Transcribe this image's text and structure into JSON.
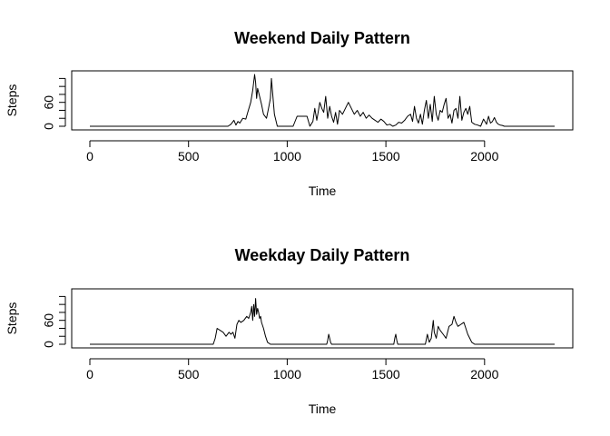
{
  "chart_data": [
    {
      "type": "line",
      "title": "Weekend Daily Pattern",
      "xlabel": "Time",
      "ylabel": "Steps",
      "xlim": [
        0,
        2355
      ],
      "ylim": [
        0,
        130
      ],
      "xticks": [
        0,
        500,
        1000,
        1500,
        2000
      ],
      "yticks": [
        0,
        60
      ],
      "series": [
        {
          "x": [
            0,
            700,
            715,
            730,
            740,
            750,
            760,
            775,
            790,
            800,
            815,
            825,
            835,
            840,
            845,
            850,
            860,
            870,
            880,
            895,
            905,
            915,
            920,
            935,
            950,
            1000,
            1030,
            1050,
            1100,
            1115,
            1130,
            1140,
            1150,
            1165,
            1175,
            1185,
            1195,
            1205,
            1215,
            1225,
            1235,
            1245,
            1255,
            1265,
            1280,
            1295,
            1310,
            1325,
            1340,
            1355,
            1370,
            1385,
            1400,
            1415,
            1430,
            1445,
            1460,
            1475,
            1490,
            1505,
            1520,
            1535,
            1550,
            1565,
            1580,
            1595,
            1610,
            1625,
            1635,
            1645,
            1655,
            1665,
            1675,
            1685,
            1695,
            1705,
            1715,
            1725,
            1735,
            1745,
            1755,
            1765,
            1775,
            1785,
            1795,
            1805,
            1815,
            1825,
            1835,
            1845,
            1855,
            1865,
            1875,
            1885,
            1895,
            1905,
            1915,
            1925,
            1935,
            1950,
            1965,
            1980,
            1995,
            2010,
            2020,
            2030,
            2040,
            2050,
            2060,
            2070,
            2080,
            2090,
            2100,
            2115,
            2130,
            2355
          ],
          "y": [
            0,
            0,
            5,
            15,
            3,
            12,
            8,
            20,
            18,
            35,
            60,
            90,
            130,
            110,
            70,
            95,
            75,
            55,
            30,
            20,
            45,
            70,
            120,
            30,
            0,
            0,
            0,
            25,
            25,
            0,
            12,
            45,
            15,
            60,
            45,
            35,
            75,
            20,
            50,
            25,
            10,
            35,
            5,
            40,
            30,
            45,
            60,
            45,
            30,
            40,
            25,
            35,
            20,
            28,
            20,
            15,
            10,
            18,
            12,
            3,
            5,
            0,
            3,
            10,
            8,
            15,
            25,
            30,
            12,
            50,
            20,
            8,
            30,
            5,
            40,
            65,
            20,
            55,
            12,
            75,
            30,
            15,
            40,
            35,
            55,
            70,
            20,
            30,
            8,
            40,
            45,
            20,
            75,
            15,
            35,
            45,
            30,
            50,
            10,
            5,
            3,
            0,
            18,
            5,
            25,
            8,
            12,
            22,
            10,
            5,
            3,
            2,
            0,
            0,
            0,
            0
          ]
        }
      ]
    },
    {
      "type": "line",
      "title": "Weekday Daily Pattern",
      "xlabel": "Time",
      "ylabel": "Steps",
      "xlim": [
        0,
        2355
      ],
      "ylim": [
        0,
        130
      ],
      "xticks": [
        0,
        500,
        1000,
        1500,
        2000
      ],
      "yticks": [
        0,
        60
      ],
      "series": [
        {
          "x": [
            0,
            625,
            635,
            645,
            660,
            675,
            690,
            705,
            715,
            725,
            735,
            745,
            755,
            765,
            780,
            795,
            805,
            815,
            820,
            825,
            830,
            835,
            840,
            845,
            850,
            855,
            860,
            865,
            870,
            880,
            890,
            900,
            915,
            930,
            1000,
            1200,
            1205,
            1210,
            1215,
            1220,
            1225,
            1540,
            1545,
            1550,
            1555,
            1560,
            1700,
            1710,
            1720,
            1730,
            1740,
            1745,
            1755,
            1765,
            1775,
            1790,
            1805,
            1820,
            1835,
            1845,
            1855,
            1865,
            1880,
            1895,
            1905,
            1915,
            1925,
            1935,
            1950,
            2355
          ],
          "y": [
            0,
            0,
            15,
            40,
            35,
            30,
            20,
            30,
            25,
            30,
            15,
            50,
            60,
            55,
            60,
            70,
            65,
            80,
            95,
            60,
            100,
            70,
            115,
            75,
            90,
            80,
            65,
            70,
            55,
            40,
            20,
            5,
            0,
            0,
            0,
            0,
            10,
            25,
            15,
            5,
            0,
            0,
            15,
            25,
            10,
            0,
            0,
            25,
            5,
            15,
            60,
            30,
            15,
            45,
            35,
            25,
            15,
            45,
            50,
            70,
            55,
            45,
            50,
            55,
            40,
            25,
            15,
            5,
            0,
            0
          ]
        }
      ]
    }
  ]
}
